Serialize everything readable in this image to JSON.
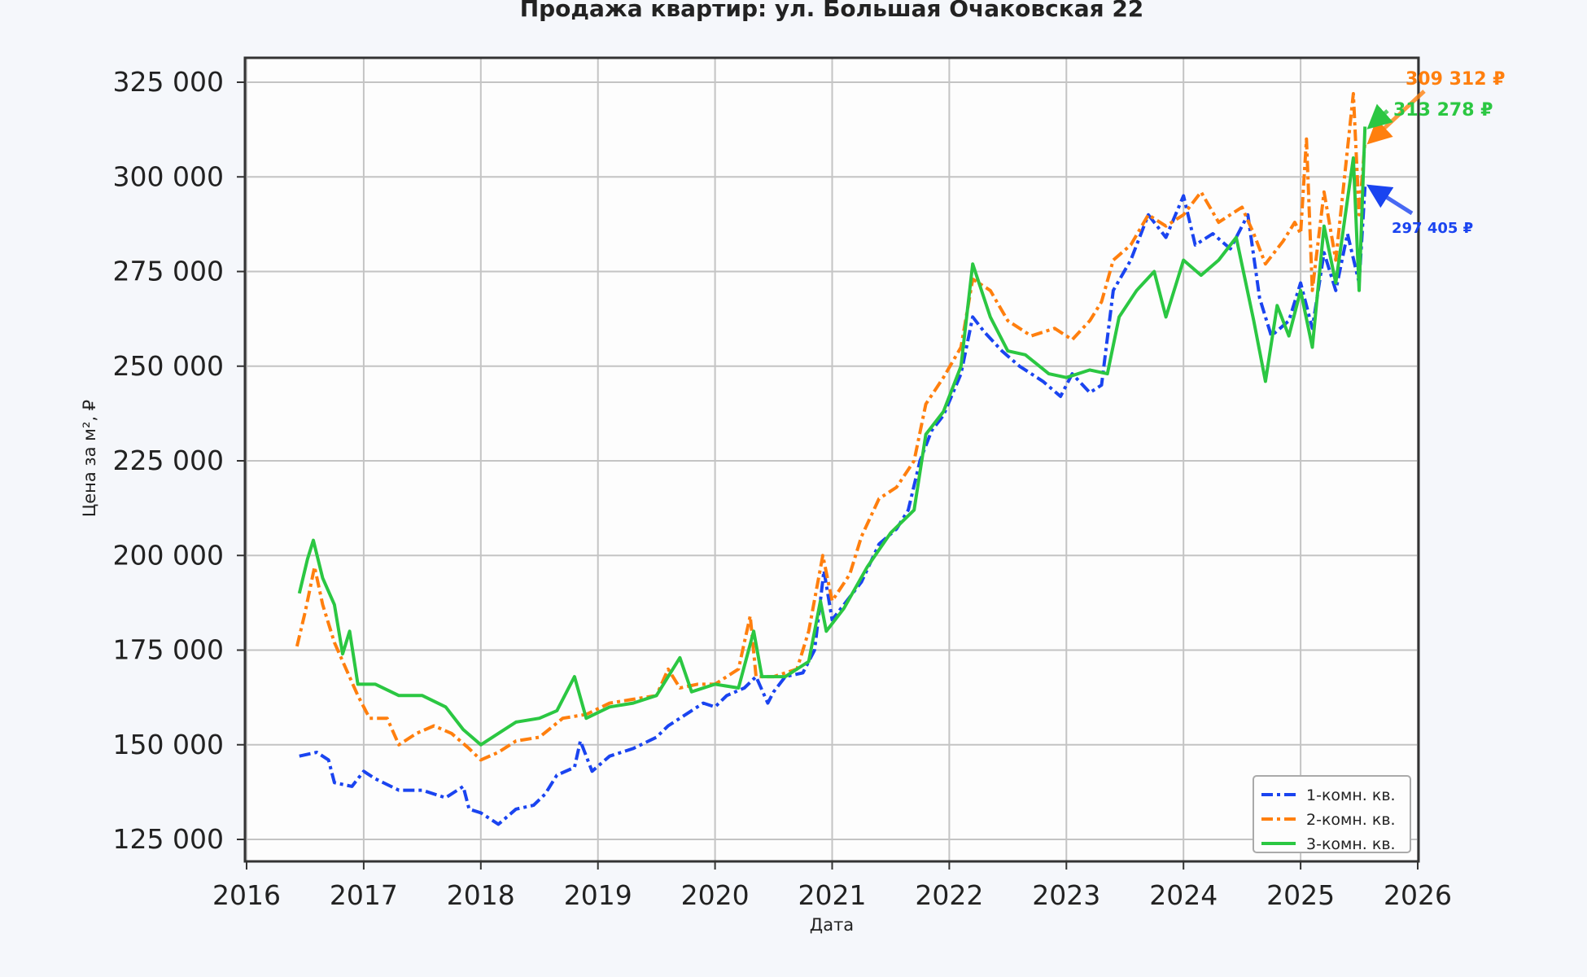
{
  "chart_data": {
    "type": "line",
    "title": "Продажа квартир: ул. Большая Очаковская 22",
    "xlabel": "Дата",
    "ylabel": "Цена за м², ₽",
    "xlim": [
      2016,
      2026
    ],
    "ylim": [
      120000,
      330000
    ],
    "x_ticks": [
      "2016",
      "2017",
      "2018",
      "2019",
      "2020",
      "2021",
      "2022",
      "2023",
      "2024",
      "2025",
      "2026"
    ],
    "y_ticks": [
      {
        "value": 125000,
        "label": "125 000"
      },
      {
        "value": 150000,
        "label": "150 000"
      },
      {
        "value": 175000,
        "label": "175 000"
      },
      {
        "value": 200000,
        "label": "200 000"
      },
      {
        "value": 225000,
        "label": "225 000"
      },
      {
        "value": 250000,
        "label": "250 000"
      },
      {
        "value": 275000,
        "label": "275 000"
      },
      {
        "value": 300000,
        "label": "300 000"
      },
      {
        "value": 325000,
        "label": "325 000"
      }
    ],
    "grid": true,
    "legend_position": "bottom-right",
    "series": [
      {
        "name": "1-комн. кв.",
        "color": "#1a44f0",
        "style": "dash-dot",
        "x": [
          2016.45,
          2016.6,
          2016.7,
          2016.75,
          2016.9,
          2017.0,
          2017.1,
          2017.3,
          2017.5,
          2017.7,
          2017.85,
          2017.9,
          2018.0,
          2018.15,
          2018.3,
          2018.45,
          2018.55,
          2018.65,
          2018.8,
          2018.85,
          2018.95,
          2019.1,
          2019.3,
          2019.5,
          2019.6,
          2019.8,
          2019.9,
          2020.0,
          2020.1,
          2020.25,
          2020.35,
          2020.45,
          2020.5,
          2020.6,
          2020.75,
          2020.85,
          2020.93,
          2021.0,
          2021.1,
          2021.25,
          2021.4,
          2021.55,
          2021.65,
          2021.75,
          2021.85,
          2021.95,
          2022.1,
          2022.2,
          2022.3,
          2022.45,
          2022.6,
          2022.8,
          2022.95,
          2023.05,
          2023.2,
          2023.3,
          2023.4,
          2023.55,
          2023.7,
          2023.85,
          2024.0,
          2024.1,
          2024.25,
          2024.4,
          2024.55,
          2024.65,
          2024.75,
          2024.9,
          2025.0,
          2025.1,
          2025.2,
          2025.3,
          2025.4,
          2025.5,
          2025.55
        ],
        "y": [
          147000,
          148000,
          146000,
          140000,
          139000,
          143000,
          141000,
          138000,
          138000,
          136000,
          139000,
          133000,
          132000,
          129000,
          133000,
          134000,
          137000,
          142000,
          144000,
          151000,
          143000,
          147000,
          149000,
          152000,
          155000,
          159000,
          161000,
          160000,
          163000,
          165000,
          168000,
          161000,
          164000,
          168000,
          169000,
          175000,
          196000,
          183000,
          187000,
          193000,
          203000,
          207000,
          212000,
          225000,
          233000,
          237000,
          248000,
          263000,
          259000,
          254000,
          250000,
          246000,
          242000,
          248000,
          243000,
          245000,
          270000,
          278000,
          290000,
          284000,
          295000,
          282000,
          285000,
          281000,
          290000,
          268000,
          258000,
          262000,
          272000,
          260000,
          280000,
          270000,
          285000,
          272000,
          297405
        ]
      },
      {
        "name": "2-комн. кв.",
        "color": "#ff7f0e",
        "style": "dash-dot",
        "x": [
          2016.43,
          2016.5,
          2016.58,
          2016.65,
          2016.75,
          2016.85,
          2016.95,
          2017.05,
          2017.2,
          2017.3,
          2017.45,
          2017.6,
          2017.75,
          2017.9,
          2018.0,
          2018.15,
          2018.3,
          2018.5,
          2018.7,
          2018.9,
          2019.1,
          2019.3,
          2019.5,
          2019.6,
          2019.7,
          2019.85,
          2020.0,
          2020.2,
          2020.3,
          2020.35,
          2020.5,
          2020.7,
          2020.8,
          2020.92,
          2021.0,
          2021.15,
          2021.25,
          2021.4,
          2021.55,
          2021.7,
          2021.8,
          2021.95,
          2022.1,
          2022.2,
          2022.35,
          2022.5,
          2022.7,
          2022.9,
          2023.05,
          2023.2,
          2023.3,
          2023.4,
          2023.55,
          2023.7,
          2023.85,
          2024.0,
          2024.15,
          2024.3,
          2024.5,
          2024.6,
          2024.7,
          2024.85,
          2024.95,
          2025.0,
          2025.05,
          2025.1,
          2025.2,
          2025.3,
          2025.45,
          2025.5,
          2025.55
        ],
        "y": [
          176000,
          185000,
          197000,
          187000,
          177000,
          170000,
          163000,
          157000,
          157000,
          150000,
          153000,
          155000,
          153000,
          149000,
          146000,
          148000,
          151000,
          152000,
          157000,
          158000,
          161000,
          162000,
          163000,
          170000,
          165000,
          166000,
          166000,
          170000,
          184000,
          168000,
          168000,
          170000,
          180000,
          200000,
          188000,
          195000,
          205000,
          215000,
          218000,
          225000,
          240000,
          247000,
          255000,
          273000,
          270000,
          262000,
          258000,
          260000,
          257000,
          262000,
          267000,
          278000,
          282000,
          290000,
          287000,
          290000,
          296000,
          288000,
          292000,
          285000,
          277000,
          283000,
          288000,
          285000,
          310000,
          270000,
          296000,
          278000,
          322000,
          290000,
          309312
        ]
      },
      {
        "name": "3-комн. кв.",
        "color": "#2bc742",
        "style": "solid",
        "x": [
          2016.45,
          2016.52,
          2016.57,
          2016.65,
          2016.75,
          2016.82,
          2016.88,
          2016.95,
          2017.1,
          2017.3,
          2017.5,
          2017.7,
          2017.85,
          2018.0,
          2018.15,
          2018.3,
          2018.5,
          2018.65,
          2018.8,
          2018.9,
          2019.1,
          2019.3,
          2019.5,
          2019.7,
          2019.8,
          2020.0,
          2020.2,
          2020.33,
          2020.4,
          2020.6,
          2020.8,
          2020.9,
          2020.95,
          2021.1,
          2021.3,
          2021.5,
          2021.7,
          2021.8,
          2021.95,
          2022.1,
          2022.2,
          2022.35,
          2022.5,
          2022.65,
          2022.85,
          2023.0,
          2023.2,
          2023.35,
          2023.45,
          2023.6,
          2023.75,
          2023.85,
          2024.0,
          2024.15,
          2024.3,
          2024.45,
          2024.6,
          2024.7,
          2024.8,
          2024.9,
          2025.0,
          2025.1,
          2025.2,
          2025.3,
          2025.45,
          2025.5,
          2025.55
        ],
        "y": [
          190000,
          199000,
          204000,
          194000,
          187000,
          174000,
          180000,
          166000,
          166000,
          163000,
          163000,
          160000,
          154000,
          150000,
          153000,
          156000,
          157000,
          159000,
          168000,
          157000,
          160000,
          161000,
          163000,
          173000,
          164000,
          166000,
          165000,
          180000,
          168000,
          168000,
          172000,
          188000,
          180000,
          186000,
          197000,
          206000,
          212000,
          232000,
          238000,
          250000,
          277000,
          263000,
          254000,
          253000,
          248000,
          247000,
          249000,
          248000,
          263000,
          270000,
          275000,
          263000,
          278000,
          274000,
          278000,
          284000,
          262000,
          246000,
          266000,
          258000,
          270000,
          255000,
          287000,
          272000,
          305000,
          270000,
          313278
        ]
      }
    ],
    "annotations": [
      {
        "text": "309 312 ₽",
        "series": "2-комн. кв.",
        "color": "#ff7f0e"
      },
      {
        "text": "313 278 ₽",
        "series": "3-комн. кв.",
        "color": "#2bc742"
      },
      {
        "text": "297 405 ₽",
        "series": "1-комн. кв.",
        "color": "#1a44f0"
      }
    ]
  }
}
